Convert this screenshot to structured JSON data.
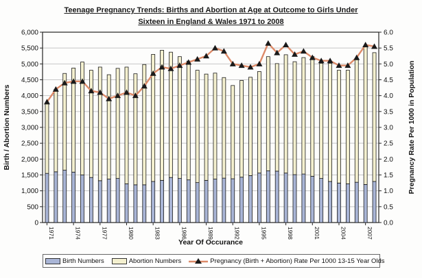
{
  "title": {
    "line1": "Teenage Pregnancy Trends: Births and Abortion at Age at Outcome to Girls Under",
    "line2": "Sixteen in England & Wales 1971 to 2008"
  },
  "legend": {
    "birth_label": "Birth Numbers",
    "abortion_label": "Abortion Numbers",
    "rate_label": "Pregnancy (Birth + Abortion) Rate Per 1000 13-15 Year Olds"
  },
  "colors": {
    "birth_bar": "#a9b5d6",
    "abortion_bar": "#f4f0cf",
    "rate_line": "#dd8a68",
    "rate_marker": "#1a1a1a",
    "gridline": "#c6c6c6",
    "frame": "#222222"
  },
  "chart_data": {
    "type": "bar",
    "subtype": "stacked-bars-with-line",
    "title": "Teenage Pregnancy Trends: Births and Abortion at Age at Outcome to Girls Under Sixteen in England & Wales 1971 to 2008",
    "categories": [
      1971,
      1972,
      1973,
      1974,
      1975,
      1976,
      1977,
      1978,
      1979,
      1980,
      1981,
      1982,
      1983,
      1984,
      1985,
      1986,
      1987,
      1988,
      1989,
      1990,
      1991,
      1992,
      1993,
      1994,
      1995,
      1996,
      1997,
      1998,
      1999,
      2000,
      2001,
      2002,
      2003,
      2004,
      2005,
      2006,
      2007,
      2008
    ],
    "series": [
      {
        "name": "Birth Numbers",
        "type": "bar",
        "stacked": true,
        "axis": "left",
        "color": "#a9b5d6",
        "values": [
          1550,
          1600,
          1650,
          1590,
          1500,
          1420,
          1320,
          1370,
          1390,
          1220,
          1190,
          1190,
          1295,
          1330,
          1420,
          1390,
          1345,
          1260,
          1330,
          1370,
          1400,
          1380,
          1430,
          1480,
          1560,
          1630,
          1620,
          1560,
          1510,
          1530,
          1460,
          1390,
          1295,
          1245,
          1220,
          1270,
          1200,
          1295
        ]
      },
      {
        "name": "Abortion Numbers",
        "type": "bar",
        "stacked": true,
        "axis": "left",
        "color": "#f4f0cf",
        "values": [
          2230,
          2600,
          3050,
          3280,
          3560,
          3380,
          3580,
          3290,
          3470,
          3680,
          3500,
          3790,
          4005,
          4100,
          3950,
          3840,
          3745,
          3540,
          3350,
          3340,
          3170,
          2940,
          3050,
          3100,
          3200,
          3600,
          3390,
          3730,
          3560,
          3670,
          3770,
          3630,
          3725,
          3555,
          3580,
          3860,
          4340,
          4060
        ]
      },
      {
        "name": "Pregnancy (Birth + Abortion) Rate Per 1000 13-15 Year Olds",
        "type": "line",
        "axis": "right",
        "color": "#dd8a68",
        "marker": "black-triangle",
        "values": [
          3.8,
          4.2,
          4.4,
          4.45,
          4.45,
          4.15,
          4.1,
          3.9,
          4.0,
          4.1,
          4.0,
          4.3,
          4.7,
          4.9,
          4.85,
          4.95,
          5.05,
          5.15,
          5.25,
          5.5,
          5.4,
          5.0,
          4.95,
          4.9,
          5.0,
          5.65,
          5.35,
          5.6,
          5.3,
          5.4,
          5.2,
          5.1,
          5.1,
          4.95,
          4.95,
          5.2,
          5.6,
          5.55
        ]
      }
    ],
    "left_axis": {
      "title": "Birth / Abortion Numbers",
      "min": 0,
      "max": 6000,
      "step": 500
    },
    "right_axis": {
      "title": "Pregnancy Rate Per 1000 in Population",
      "min": 0,
      "max": 6,
      "step": 0.5
    },
    "x_axis": {
      "title": "Year Of Occurance",
      "labeled_ticks": [
        1971,
        1974,
        1977,
        1980,
        1983,
        1986,
        1989,
        1992,
        1995,
        1998,
        2001,
        2004,
        2007
      ]
    },
    "grid": true,
    "legend_position": "bottom"
  }
}
